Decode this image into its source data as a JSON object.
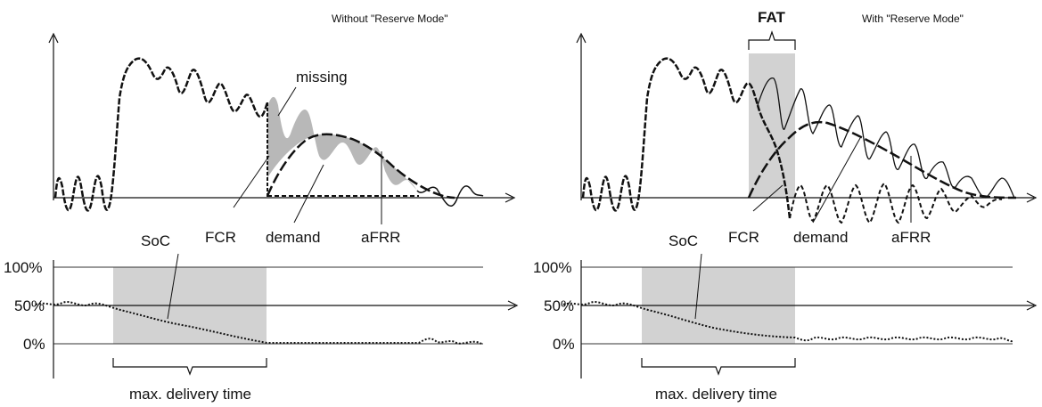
{
  "panels": [
    {
      "id": "without",
      "title": "Without \"Reserve Mode\"",
      "labels": {
        "missing": "missing",
        "fcr": "FCR",
        "demand": "demand",
        "afrr": "aFRR",
        "soc": "SoC",
        "max_delivery": "max. delivery time"
      },
      "soc_ticks": [
        "100%",
        "50%",
        "0%"
      ]
    },
    {
      "id": "with",
      "title": "With \"Reserve Mode\"",
      "labels": {
        "fat": "FAT",
        "fcr": "FCR",
        "demand": "demand",
        "afrr": "aFRR",
        "soc": "SoC",
        "max_delivery": "max. delivery time"
      },
      "soc_ticks": [
        "100%",
        "50%",
        "0%"
      ]
    }
  ],
  "colors": {
    "shade": "#d2d2d2",
    "missing_fill": "#b8b8b8",
    "line": "#111111",
    "grid": "#333333"
  }
}
